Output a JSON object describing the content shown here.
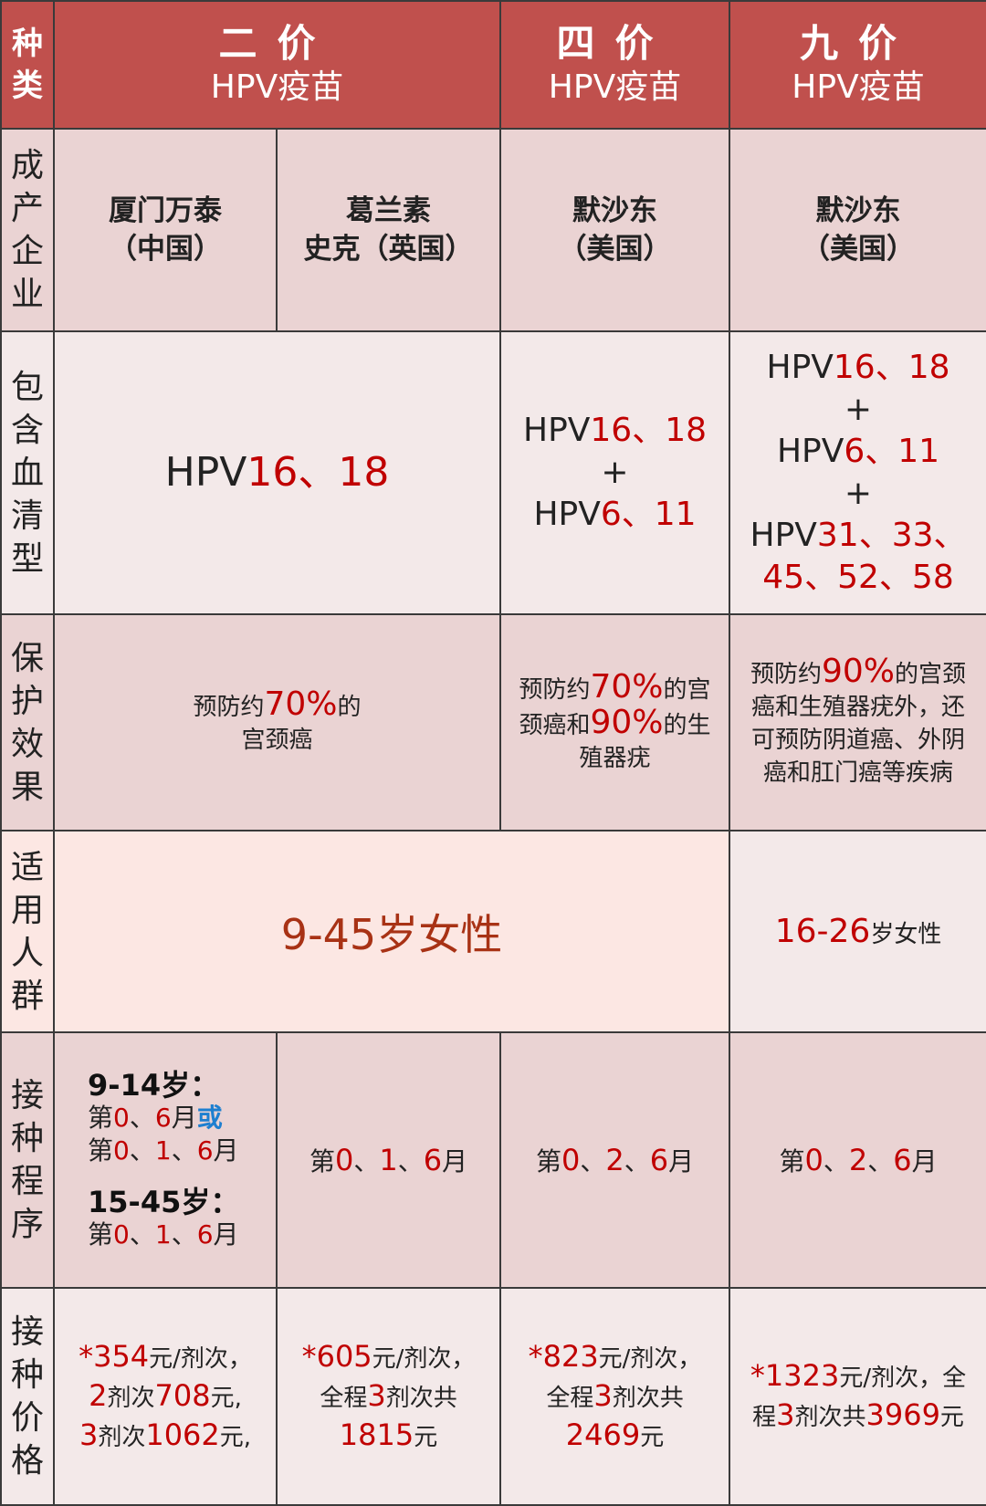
{
  "colors": {
    "header": "#c0504d",
    "accent_red": "#c00000",
    "accent_blue": "#1e7fd0"
  },
  "row_labels": {
    "type": "种类",
    "maker": "成产企业",
    "serotype": "包含血清型",
    "effect": "保护效果",
    "population": "适用人群",
    "schedule": "接种程序",
    "price": "接种价格"
  },
  "headers": [
    {
      "big": "二价",
      "sub": "HPV疫苗"
    },
    {
      "big": "四价",
      "sub": "HPV疫苗"
    },
    {
      "big": "九价",
      "sub": "HPV疫苗"
    }
  ],
  "makers": [
    [
      "厦门万泰",
      "（中国）"
    ],
    [
      "葛兰素",
      "史克（英国）"
    ],
    [
      "默沙东",
      "（美国）"
    ],
    [
      "默沙东",
      "（美国）"
    ]
  ],
  "serotypes": {
    "bivalent": [
      [
        {
          "t": "HPV"
        },
        {
          "t": "16、18",
          "c": "red"
        }
      ]
    ],
    "quadrivalent": [
      [
        {
          "t": "HPV"
        },
        {
          "t": "16、18",
          "c": "red"
        }
      ],
      [
        {
          "t": "+"
        }
      ],
      [
        {
          "t": "HPV"
        },
        {
          "t": "6、11",
          "c": "red"
        }
      ]
    ],
    "nonavalent": [
      [
        {
          "t": "HPV"
        },
        {
          "t": "16、18",
          "c": "red"
        }
      ],
      [
        {
          "t": "+"
        }
      ],
      [
        {
          "t": "HPV"
        },
        {
          "t": "6、11",
          "c": "red"
        }
      ],
      [
        {
          "t": "+"
        }
      ],
      [
        {
          "t": "HPV"
        },
        {
          "t": "31、33、",
          "c": "red"
        }
      ],
      [
        {
          "t": "45、52、58",
          "c": "red"
        }
      ]
    ]
  },
  "effects": {
    "bivalent": [
      [
        {
          "t": "预防约"
        },
        {
          "t": "70%",
          "c": "red"
        },
        {
          "t": "的"
        }
      ],
      [
        {
          "t": "宫颈癌"
        }
      ]
    ],
    "quadrivalent": [
      [
        {
          "t": "预防约"
        },
        {
          "t": "70%",
          "c": "red"
        },
        {
          "t": "的宫"
        }
      ],
      [
        {
          "t": "颈癌和"
        },
        {
          "t": "90%",
          "c": "red"
        },
        {
          "t": "的生"
        }
      ],
      [
        {
          "t": "殖器疣"
        }
      ]
    ],
    "nonavalent": [
      [
        {
          "t": "预防约"
        },
        {
          "t": "90%",
          "c": "red"
        },
        {
          "t": "的宫颈"
        }
      ],
      [
        {
          "t": "癌和生殖器疣外，还"
        }
      ],
      [
        {
          "t": "可预防阴道癌、外阴"
        }
      ],
      [
        {
          "t": "癌和肛门癌等疾病"
        }
      ]
    ]
  },
  "population": {
    "bi_quad": "9-45岁女性",
    "nonavalent": [
      [
        {
          "t": "16-26",
          "c": "red"
        },
        {
          "t": "岁女性"
        }
      ]
    ]
  },
  "schedule": {
    "wantai": {
      "group1_title": "9-14岁：",
      "group1": [
        [
          {
            "t": "第"
          },
          {
            "t": "0",
            "c": "red"
          },
          {
            "t": "、"
          },
          {
            "t": "6",
            "c": "red"
          },
          {
            "t": "月"
          },
          {
            "t": "或",
            "c": "blue"
          }
        ],
        [
          {
            "t": "第"
          },
          {
            "t": "0",
            "c": "red"
          },
          {
            "t": "、"
          },
          {
            "t": "1",
            "c": "red"
          },
          {
            "t": "、"
          },
          {
            "t": "6",
            "c": "red"
          },
          {
            "t": "月"
          }
        ]
      ],
      "group2_title": "15-45岁：",
      "group2": [
        [
          {
            "t": "第"
          },
          {
            "t": "0",
            "c": "red"
          },
          {
            "t": "、"
          },
          {
            "t": "1",
            "c": "red"
          },
          {
            "t": "、"
          },
          {
            "t": "6",
            "c": "red"
          },
          {
            "t": "月"
          }
        ]
      ]
    },
    "gsk": [
      [
        {
          "t": "第"
        },
        {
          "t": "0",
          "c": "red"
        },
        {
          "t": "、"
        },
        {
          "t": "1",
          "c": "red"
        },
        {
          "t": "、"
        },
        {
          "t": "6",
          "c": "red"
        },
        {
          "t": "月"
        }
      ]
    ],
    "quadrivalent": [
      [
        {
          "t": "第"
        },
        {
          "t": "0",
          "c": "red"
        },
        {
          "t": "、"
        },
        {
          "t": "2",
          "c": "red"
        },
        {
          "t": "、"
        },
        {
          "t": "6",
          "c": "red"
        },
        {
          "t": "月"
        }
      ]
    ],
    "nonavalent": [
      [
        {
          "t": "第"
        },
        {
          "t": "0",
          "c": "red"
        },
        {
          "t": "、"
        },
        {
          "t": "2",
          "c": "red"
        },
        {
          "t": "、"
        },
        {
          "t": "6",
          "c": "red"
        },
        {
          "t": "月"
        }
      ]
    ]
  },
  "prices": {
    "wantai": [
      [
        {
          "t": "*354",
          "c": "red"
        },
        {
          "t": "元/剂次，"
        }
      ],
      [
        {
          "t": "2",
          "c": "red"
        },
        {
          "t": "剂次"
        },
        {
          "t": "708",
          "c": "red"
        },
        {
          "t": "元,"
        }
      ],
      [
        {
          "t": "3",
          "c": "red"
        },
        {
          "t": "剂次"
        },
        {
          "t": "1062",
          "c": "red"
        },
        {
          "t": "元,"
        }
      ]
    ],
    "gsk": [
      [
        {
          "t": "*605",
          "c": "red"
        },
        {
          "t": "元/剂次，"
        }
      ],
      [
        {
          "t": "全程"
        },
        {
          "t": "3",
          "c": "red"
        },
        {
          "t": "剂次共"
        }
      ],
      [
        {
          "t": "1815",
          "c": "red"
        },
        {
          "t": "元"
        }
      ]
    ],
    "quadrivalent": [
      [
        {
          "t": "*823",
          "c": "red"
        },
        {
          "t": "元/剂次，"
        }
      ],
      [
        {
          "t": "全程"
        },
        {
          "t": "3",
          "c": "red"
        },
        {
          "t": "剂次共"
        }
      ],
      [
        {
          "t": "2469",
          "c": "red"
        },
        {
          "t": "元"
        }
      ]
    ],
    "nonavalent": [
      [
        {
          "t": "*1323",
          "c": "red"
        },
        {
          "t": "元/剂次，全"
        }
      ],
      [
        {
          "t": "程"
        },
        {
          "t": "3",
          "c": "red"
        },
        {
          "t": "剂次共"
        },
        {
          "t": "3969",
          "c": "red"
        },
        {
          "t": "元"
        }
      ]
    ]
  }
}
